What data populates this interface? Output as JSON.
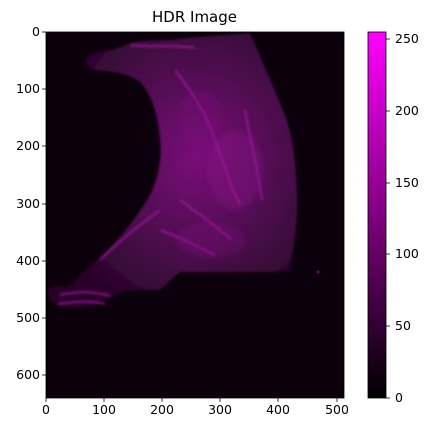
{
  "title": "HDR Image",
  "image": {
    "description_icon": "fluorescence-image",
    "x_ticks": [
      "0",
      "100",
      "200",
      "300",
      "400",
      "500"
    ],
    "y_ticks": [
      "0",
      "100",
      "200",
      "300",
      "400",
      "500",
      "600"
    ]
  },
  "colorbar": {
    "ticks": [
      "0",
      "50",
      "100",
      "150",
      "200",
      "250"
    ],
    "colors": [
      "#000000",
      "#ff00ff"
    ]
  }
}
